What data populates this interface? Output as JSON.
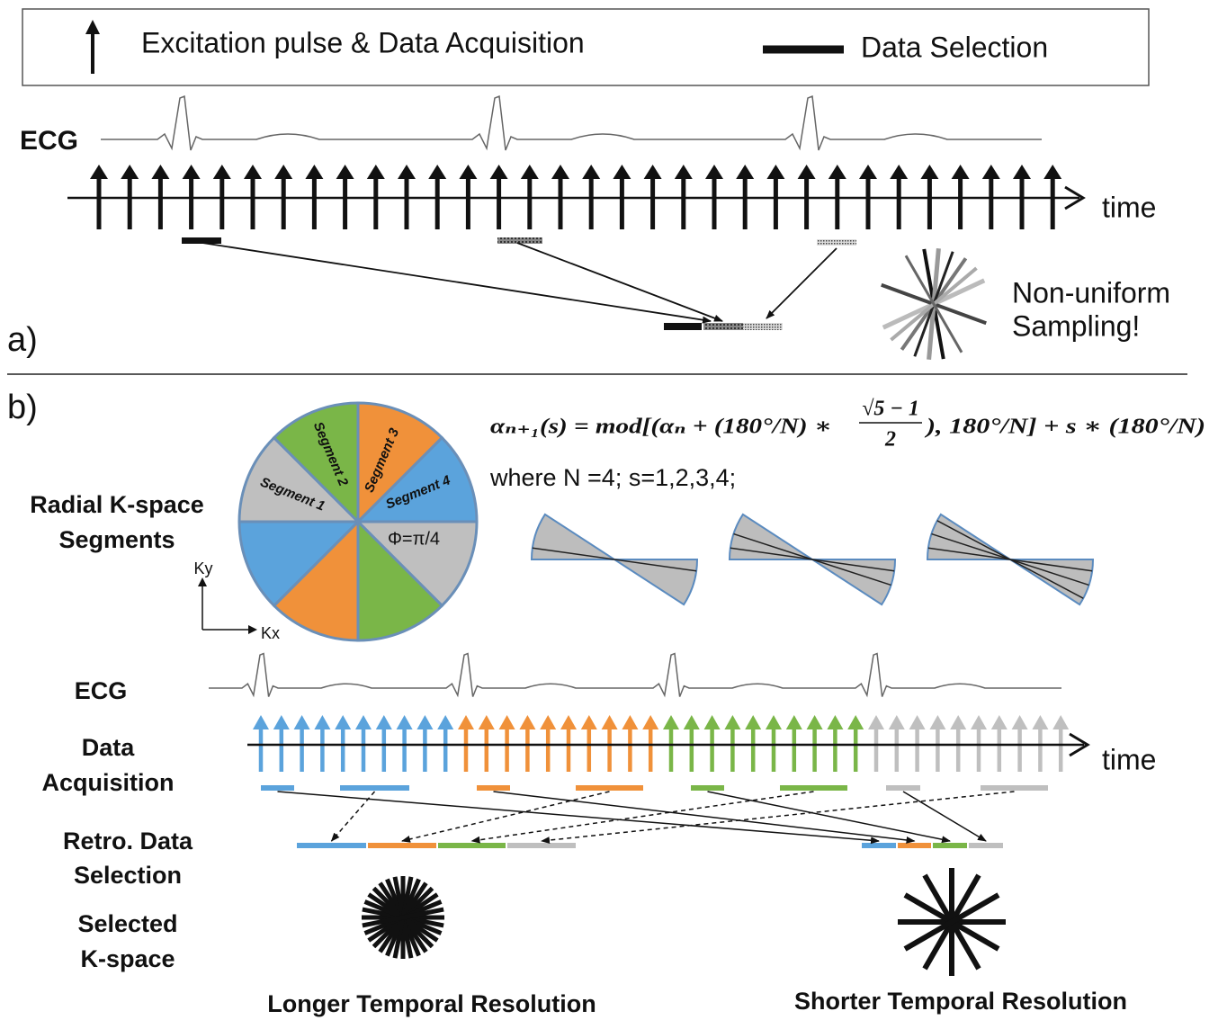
{
  "panel_a": {
    "legend": {
      "pulse_label": "Excitation pulse & Data Acquisition",
      "selection_label": "Data Selection"
    },
    "ecg_label": "ECG",
    "time_label": "time",
    "note": [
      "Non-uniform",
      "Sampling!"
    ],
    "panel_label": "a)"
  },
  "panel_b": {
    "panel_label": "b)",
    "formula": {
      "lhs": "αₙ₊₁(s) = mod[(αₙ + (180°/N) ∗",
      "numerator": "√5 − 1",
      "denominator": "2",
      "rhs": "), 180°/N] + s ∗ (180°/N)"
    },
    "where": "where N =4;  s=1,2,3,4;",
    "kspace_label": [
      "Radial K-space",
      "Segments"
    ],
    "segments": [
      "Segment 1",
      "Segment 2",
      "Segment 3",
      "Segment 4"
    ],
    "angle": "Φ=π/4",
    "axes": {
      "y": "Ky",
      "x": "Kx"
    },
    "ecg_label": "ECG",
    "acquisition_label": [
      "Data",
      "Acquisition"
    ],
    "time_label": "time",
    "retro_label": [
      "Retro. Data",
      "Selection"
    ],
    "selected_label": [
      "Selected",
      "K-space"
    ],
    "longer": "Longer Temporal Resolution",
    "shorter": "Shorter Temporal Resolution"
  }
}
